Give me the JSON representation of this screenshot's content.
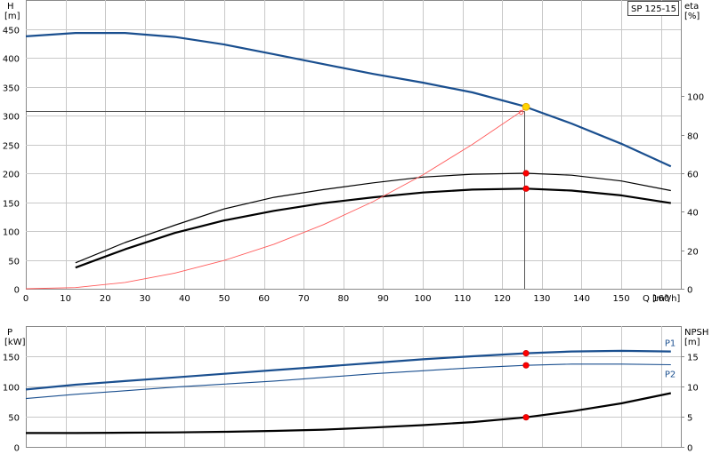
{
  "chart_data": [
    {
      "type": "line",
      "title": "SP 125-15",
      "x_axis": {
        "label": "Q [m³/h]",
        "range": [
          0,
          165
        ],
        "ticks": [
          0,
          10,
          20,
          30,
          40,
          50,
          60,
          70,
          80,
          90,
          100,
          110,
          120,
          130,
          140,
          150,
          160
        ]
      },
      "y_axis_left": {
        "label_top": "H",
        "label_unit": "[m]",
        "range": [
          0,
          500
        ],
        "ticks": [
          0,
          50,
          100,
          150,
          200,
          250,
          300,
          350,
          400,
          450
        ]
      },
      "y_axis_right": {
        "label_top": "eta",
        "label_unit": "[%]",
        "range": [
          0,
          150
        ],
        "ticks": [
          0,
          20,
          40,
          60,
          80,
          100
        ]
      },
      "grid": true,
      "series": [
        {
          "axis": "left",
          "color": "#1a4f8f",
          "width": 2.2,
          "points": [
            [
              0,
              437
            ],
            [
              12.5,
              443
            ],
            [
              25,
              443
            ],
            [
              37.5,
              436
            ],
            [
              50,
              423
            ],
            [
              62.5,
              406
            ],
            [
              75,
              389
            ],
            [
              87.5,
              372
            ],
            [
              100,
              357
            ],
            [
              112.5,
              340
            ],
            [
              125,
              317
            ],
            [
              137.5,
              286
            ],
            [
              150,
              251
            ],
            [
              162.5,
              212
            ]
          ]
        },
        {
          "axis": "right",
          "color": "#000000",
          "width": 1.2,
          "points": [
            [
              12.5,
              13.5
            ],
            [
              25,
              24
            ],
            [
              37.5,
              33
            ],
            [
              50,
              41.5
            ],
            [
              62.5,
              47.5
            ],
            [
              75,
              51.5
            ],
            [
              87.5,
              55
            ],
            [
              100,
              58
            ],
            [
              112.5,
              59.5
            ],
            [
              126,
              60
            ],
            [
              137.5,
              59
            ],
            [
              150,
              56
            ],
            [
              162.5,
              51
            ]
          ]
        },
        {
          "axis": "right",
          "color": "#000000",
          "width": 2.2,
          "points": [
            [
              12.5,
              11
            ],
            [
              25,
              20.5
            ],
            [
              37.5,
              29
            ],
            [
              50,
              35.5
            ],
            [
              62.5,
              40.5
            ],
            [
              75,
              44.5
            ],
            [
              87.5,
              47.5
            ],
            [
              100,
              50
            ],
            [
              112.5,
              51.5
            ],
            [
              126,
              52
            ],
            [
              137.5,
              51
            ],
            [
              150,
              48.5
            ],
            [
              162.5,
              44.5
            ]
          ]
        },
        {
          "axis": "left",
          "color": "#ff5a5a",
          "width": 0.9,
          "points": [
            [
              0,
              0
            ],
            [
              12.5,
              2
            ],
            [
              25,
              11
            ],
            [
              37.5,
              27
            ],
            [
              50,
              49
            ],
            [
              62.5,
              77
            ],
            [
              75,
              111
            ],
            [
              87.5,
              151
            ],
            [
              100,
              197
            ],
            [
              112.5,
              250
            ],
            [
              125,
              308
            ],
            [
              126,
              315
            ]
          ]
        }
      ],
      "markers": [
        {
          "axis": "left",
          "x": 126,
          "y": 315,
          "color": "#ffd400"
        },
        {
          "axis": "right",
          "x": 126,
          "y": 60,
          "color": "#ff0000"
        },
        {
          "axis": "right",
          "x": 126,
          "y": 52,
          "color": "#ff0000"
        }
      ],
      "duty_line": {
        "x": 125.5,
        "y": 308
      }
    },
    {
      "type": "line",
      "x_axis": {
        "range": [
          0,
          165
        ]
      },
      "y_axis_left": {
        "label_top": "P",
        "label_unit": "[kW]",
        "range": [
          0,
          200
        ],
        "ticks": [
          0,
          50,
          100,
          150
        ]
      },
      "y_axis_right": {
        "label_top": "NPSH",
        "label_unit": "[m]",
        "range": [
          0,
          20
        ],
        "ticks": [
          0,
          5,
          10,
          15
        ]
      },
      "grid": true,
      "series": [
        {
          "name": "P1",
          "axis": "left",
          "color": "#1a4f8f",
          "width": 2.2,
          "points": [
            [
              0,
              95
            ],
            [
              12.5,
              103
            ],
            [
              25,
              109
            ],
            [
              37.5,
              115
            ],
            [
              50,
              121
            ],
            [
              62.5,
              127
            ],
            [
              75,
              133
            ],
            [
              87.5,
              139
            ],
            [
              100,
              145
            ],
            [
              112.5,
              150
            ],
            [
              126,
              155
            ],
            [
              137.5,
              158
            ],
            [
              150,
              159
            ],
            [
              162.5,
              158
            ]
          ]
        },
        {
          "name": "P2",
          "axis": "left",
          "color": "#1a4f8f",
          "width": 1.1,
          "points": [
            [
              0,
              80
            ],
            [
              12.5,
              87
            ],
            [
              25,
              93
            ],
            [
              37.5,
              99
            ],
            [
              50,
              104
            ],
            [
              62.5,
              109
            ],
            [
              75,
              115
            ],
            [
              87.5,
              121
            ],
            [
              100,
              126
            ],
            [
              112.5,
              131
            ],
            [
              126,
              135
            ],
            [
              137.5,
              137
            ],
            [
              150,
              137
            ],
            [
              162.5,
              136
            ]
          ]
        },
        {
          "axis": "right",
          "color": "#000000",
          "width": 2.2,
          "points": [
            [
              0,
              2.3
            ],
            [
              12.5,
              2.3
            ],
            [
              25,
              2.35
            ],
            [
              37.5,
              2.4
            ],
            [
              50,
              2.5
            ],
            [
              62.5,
              2.65
            ],
            [
              75,
              2.85
            ],
            [
              87.5,
              3.2
            ],
            [
              100,
              3.6
            ],
            [
              112.5,
              4.1
            ],
            [
              126,
              4.9
            ],
            [
              137.5,
              5.9
            ],
            [
              150,
              7.2
            ],
            [
              162.5,
              8.9
            ]
          ]
        }
      ],
      "markers": [
        {
          "axis": "left",
          "x": 126,
          "y": 155,
          "color": "#ff0000"
        },
        {
          "axis": "left",
          "x": 126,
          "y": 135,
          "color": "#ff0000"
        },
        {
          "axis": "right",
          "x": 126,
          "y": 4.9,
          "color": "#ff0000"
        }
      ]
    }
  ]
}
